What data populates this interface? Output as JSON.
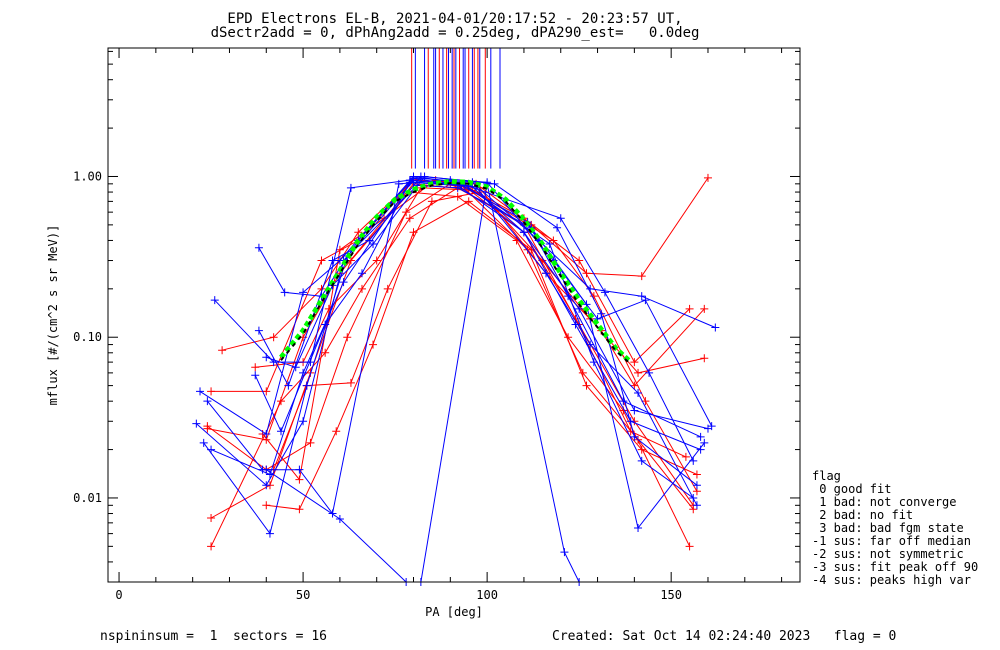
{
  "header": {
    "title": "EPD Electrons EL-B, 2021-04-01/20:17:52 - 20:23:57 UT,",
    "subtitle": "dSectr2add = 0, dPhAng2add = 0.25deg, dPA290_est=   0.0deg"
  },
  "footer": {
    "left": "nspininsum =  1  sectors = 16",
    "right": "Created: Sat Oct 14 02:24:40 2023   flag = 0"
  },
  "legend": {
    "title": "flag",
    "items": [
      " 0 good fit",
      " 1 bad: not converge",
      " 2 bad: no fit",
      " 3 bad: bad fgm state",
      "-1 sus: far off median",
      "-2 sus: not symmetric",
      "-3 sus: fit peak off 90",
      "-4 sus: peaks high var"
    ]
  },
  "chart_data": {
    "type": "line",
    "xlabel": "PA [deg]",
    "ylabel": "mflux [#/(cm^2 s sr MeV)]",
    "xlim": [
      -3,
      185
    ],
    "ylim": [
      0.003,
      6.3
    ],
    "yscale": "log",
    "xticks": [
      0,
      50,
      100,
      150
    ],
    "yticks": [
      {
        "value": 0.01,
        "label": "0.01"
      },
      {
        "value": 0.1,
        "label": "0.10"
      },
      {
        "value": 1.0,
        "label": "1.00"
      }
    ],
    "colors": {
      "red": "#ff0000",
      "blue": "#0000ff",
      "fit": "#00ff00",
      "median": "#000000"
    },
    "series": [
      {
        "color": "red",
        "x": [
          25,
          40,
          55,
          65,
          80,
          95,
          110,
          125,
          140,
          155
        ],
        "y": [
          0.046,
          0.046,
          0.3,
          0.4,
          0.95,
          0.85,
          0.55,
          0.3,
          0.07,
          0.15
        ]
      },
      {
        "color": "red",
        "x": [
          24,
          40,
          50,
          60,
          80,
          95,
          110,
          125,
          140,
          156
        ],
        "y": [
          0.027,
          0.023,
          0.1,
          0.25,
          0.9,
          0.83,
          0.45,
          0.12,
          0.03,
          0.009
        ]
      },
      {
        "color": "red",
        "x": [
          25,
          41,
          52,
          63,
          79,
          92,
          108,
          122,
          137,
          155
        ],
        "y": [
          0.0075,
          0.012,
          0.06,
          0.3,
          0.8,
          0.75,
          0.4,
          0.1,
          0.035,
          0.005
        ]
      },
      {
        "color": "red",
        "x": [
          28,
          42,
          55,
          65,
          80,
          97,
          112,
          127,
          142,
          160
        ],
        "y": [
          0.083,
          0.1,
          0.2,
          0.45,
          0.95,
          0.9,
          0.5,
          0.25,
          0.24,
          0.98
        ]
      },
      {
        "color": "red",
        "x": [
          40,
          49,
          59,
          69,
          80,
          95,
          112,
          127,
          142,
          157
        ],
        "y": [
          0.009,
          0.0085,
          0.026,
          0.09,
          0.45,
          0.7,
          0.35,
          0.05,
          0.02,
          0.014
        ]
      },
      {
        "color": "red",
        "x": [
          42,
          51,
          63,
          73,
          85,
          98,
          115,
          128,
          141,
          159
        ],
        "y": [
          0.015,
          0.05,
          0.052,
          0.2,
          0.7,
          0.8,
          0.3,
          0.13,
          0.06,
          0.074
        ]
      },
      {
        "color": "red",
        "x": [
          39,
          49,
          60,
          72,
          86,
          98,
          116,
          131,
          140,
          159
        ],
        "y": [
          0.025,
          0.013,
          0.35,
          0.55,
          0.95,
          0.85,
          0.25,
          0.11,
          0.05,
          0.15
        ]
      },
      {
        "color": "red",
        "x": [
          37,
          50,
          57,
          70,
          82,
          96,
          118,
          129,
          143,
          157
        ],
        "y": [
          0.065,
          0.07,
          0.15,
          0.3,
          0.85,
          0.82,
          0.4,
          0.18,
          0.04,
          0.011
        ]
      },
      {
        "color": "red",
        "x": [
          24,
          40,
          52,
          62,
          78,
          90,
          110,
          124,
          139,
          154
        ],
        "y": [
          0.028,
          0.015,
          0.022,
          0.1,
          0.6,
          0.9,
          0.5,
          0.13,
          0.026,
          0.018
        ]
      },
      {
        "color": "red",
        "x": [
          25,
          44,
          56,
          66,
          79,
          93,
          111,
          126,
          141,
          156
        ],
        "y": [
          0.005,
          0.04,
          0.08,
          0.2,
          0.55,
          0.88,
          0.35,
          0.06,
          0.023,
          0.0085
        ]
      },
      {
        "color": "blue",
        "x": [
          22,
          40,
          50,
          60,
          80,
          95,
          110,
          125,
          140,
          160
        ],
        "y": [
          0.046,
          0.025,
          0.19,
          0.3,
          1.0,
          0.9,
          0.45,
          0.15,
          0.035,
          0.027
        ]
      },
      {
        "color": "blue",
        "x": [
          26,
          42,
          52,
          63,
          79,
          93,
          111,
          122,
          137,
          158
        ],
        "y": [
          0.17,
          0.07,
          0.07,
          0.85,
          0.95,
          0.88,
          0.52,
          0.18,
          0.04,
          0.024
        ]
      },
      {
        "color": "blue",
        "x": [
          38,
          45,
          55,
          65,
          80,
          96,
          114,
          128,
          142,
          162
        ],
        "y": [
          0.36,
          0.19,
          0.18,
          0.4,
          0.98,
          0.92,
          0.4,
          0.2,
          0.18,
          0.115
        ]
      },
      {
        "color": "blue",
        "x": [
          23,
          41,
          51,
          62,
          81,
          92,
          112,
          127,
          141,
          159
        ],
        "y": [
          0.022,
          0.006,
          0.05,
          0.32,
          0.88,
          0.85,
          0.48,
          0.16,
          0.0065,
          0.022
        ]
      },
      {
        "color": "blue",
        "x": [
          24,
          39,
          49,
          58,
          76,
          90,
          110,
          124,
          139,
          158
        ],
        "y": [
          0.04,
          0.015,
          0.015,
          0.008,
          0.9,
          0.95,
          0.45,
          0.12,
          0.03,
          0.02
        ]
      },
      {
        "color": "blue",
        "x": [
          38,
          46,
          58,
          68,
          82,
          100,
          118,
          130,
          143,
          161
        ],
        "y": [
          0.11,
          0.05,
          0.3,
          0.4,
          1.0,
          0.92,
          0.3,
          0.13,
          0.17,
          0.028
        ]
      },
      {
        "color": "blue",
        "x": [
          21,
          40,
          50,
          61,
          80,
          97,
          116,
          128,
          141,
          157
        ],
        "y": [
          0.029,
          0.012,
          0.03,
          0.3,
          0.94,
          0.86,
          0.25,
          0.09,
          0.045,
          0.009
        ]
      },
      {
        "color": "blue",
        "x": [
          37,
          44,
          56,
          66,
          79,
          95,
          120,
          132,
          144,
          156
        ],
        "y": [
          0.058,
          0.026,
          0.12,
          0.25,
          0.92,
          0.87,
          0.55,
          0.19,
          0.06,
          0.017
        ]
      },
      {
        "color": "blue",
        "x": [
          40,
          48,
          58,
          69,
          83,
          102,
          119,
          131,
          140,
          157
        ],
        "y": [
          0.075,
          0.065,
          0.21,
          0.38,
          1.0,
          0.9,
          0.48,
          0.14,
          0.024,
          0.012
        ]
      },
      {
        "color": "blue",
        "x": [
          25,
          41,
          50,
          61,
          80,
          94,
          117,
          129,
          142,
          156
        ],
        "y": [
          0.02,
          0.014,
          0.06,
          0.22,
          0.97,
          0.88,
          0.38,
          0.07,
          0.017,
          0.01
        ]
      },
      {
        "color": "blue",
        "x": [
          40,
          60,
          78
        ],
        "y": [
          0.015,
          0.0074,
          0.003
        ]
      },
      {
        "color": "blue",
        "x": [
          82,
          100,
          121,
          125
        ],
        "y": [
          0.003,
          0.9,
          0.0046,
          0.003
        ]
      }
    ],
    "fit": {
      "x": [
        44,
        50,
        55,
        60,
        65,
        70,
        75,
        80,
        85,
        90,
        95,
        100,
        105,
        110,
        115,
        120,
        125,
        130,
        135,
        139
      ],
      "y": [
        0.075,
        0.11,
        0.17,
        0.26,
        0.4,
        0.56,
        0.72,
        0.83,
        0.9,
        0.93,
        0.92,
        0.86,
        0.72,
        0.54,
        0.38,
        0.25,
        0.17,
        0.12,
        0.085,
        0.07
      ]
    },
    "median": {
      "x": [
        44,
        50,
        55,
        60,
        65,
        70,
        75,
        80,
        85,
        90,
        95,
        100,
        105,
        110,
        115,
        120,
        125,
        130,
        135,
        139
      ],
      "y": [
        0.072,
        0.105,
        0.165,
        0.25,
        0.38,
        0.53,
        0.7,
        0.8,
        0.88,
        0.91,
        0.9,
        0.84,
        0.7,
        0.52,
        0.36,
        0.24,
        0.16,
        0.115,
        0.082,
        0.068
      ]
    },
    "vlines": {
      "red": [
        79.5,
        84,
        87,
        89,
        91,
        92.5,
        95,
        96.5,
        97.5,
        99.5
      ],
      "blue": [
        80.5,
        83,
        85.5,
        86,
        88,
        89.5,
        90.5,
        91.5,
        93.5,
        94,
        96,
        98,
        101,
        103.5
      ]
    }
  }
}
